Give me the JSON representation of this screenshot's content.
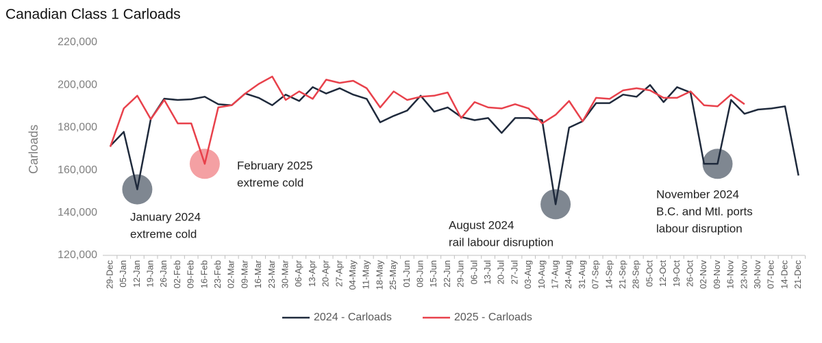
{
  "chart_data": {
    "type": "line",
    "title": "Canadian Class 1 Carloads",
    "y_label": "Carloads",
    "categories": [
      "29-Dec",
      "05-Jan",
      "12-Jan",
      "19-Jan",
      "26-Jan",
      "02-Feb",
      "09-Feb",
      "16-Feb",
      "23-Feb",
      "02-Mar",
      "09-Mar",
      "16-Mar",
      "23-Mar",
      "30-Mar",
      "06-Apr",
      "13-Apr",
      "20-Apr",
      "27-Apr",
      "04-May",
      "11-May",
      "18-May",
      "25-May",
      "01-Jun",
      "08-Jun",
      "15-Jun",
      "22-Jun",
      "29-Jun",
      "06-Jul",
      "13-Jul",
      "20-Jul",
      "27-Jul",
      "03-Aug",
      "10-Aug",
      "17-Aug",
      "24-Aug",
      "31-Aug",
      "07-Sep",
      "14-Sep",
      "21-Sep",
      "28-Sep",
      "05-Oct",
      "12-Oct",
      "19-Oct",
      "26-Oct",
      "02-Nov",
      "09-Nov",
      "16-Nov",
      "23-Nov",
      "30-Nov",
      "07-Dec",
      "14-Dec",
      "21-Dec"
    ],
    "series": [
      {
        "name": "2024 - Carloads",
        "color": "#1f2a3c",
        "values": [
          171400,
          178000,
          151000,
          184000,
          193600,
          193000,
          193300,
          194500,
          191000,
          190500,
          196000,
          194000,
          190500,
          195500,
          192500,
          199000,
          196000,
          198500,
          195500,
          193500,
          182500,
          185500,
          188000,
          195000,
          187500,
          189500,
          185000,
          183500,
          184500,
          177500,
          184500,
          184500,
          183500,
          144000,
          180000,
          183000,
          191500,
          191500,
          195500,
          194500,
          200000,
          192000,
          199000,
          196500,
          163000,
          163000,
          193000,
          186500,
          188500,
          189000,
          190000,
          157500
        ]
      },
      {
        "name": "2025 - Carloads",
        "color": "#e8414b",
        "values": [
          171000,
          189000,
          195000,
          184000,
          193000,
          182000,
          182000,
          163000,
          189500,
          190500,
          196000,
          200500,
          204000,
          193000,
          197000,
          193500,
          202500,
          201000,
          202000,
          198500,
          189500,
          197000,
          193000,
          194500,
          195000,
          196500,
          184500,
          192000,
          189500,
          189000,
          191000,
          189000,
          182000,
          186000,
          192500,
          183000,
          194000,
          193500,
          197500,
          198500,
          197500,
          194000,
          194000,
          197000,
          190500,
          190000,
          195500,
          191000,
          null,
          null,
          null,
          null
        ]
      }
    ],
    "ylim": [
      120000,
      220000
    ],
    "yticks": [
      {
        "value": 120000,
        "label": "120,000"
      },
      {
        "value": 140000,
        "label": "140,000"
      },
      {
        "value": 160000,
        "label": "160,000"
      },
      {
        "value": 180000,
        "label": "180,000"
      },
      {
        "value": 200000,
        "label": "200,000"
      },
      {
        "value": 220000,
        "label": "220,000"
      }
    ],
    "grid": false,
    "legend": "bottom",
    "annotations": [
      {
        "lines": [
          "January 2024",
          "extreme cold"
        ],
        "x": "12-Jan",
        "series": "2024 - Carloads",
        "color": "#7f8791"
      },
      {
        "lines": [
          "February 2025",
          "extreme cold"
        ],
        "x": "16-Feb",
        "series": "2025 - Carloads",
        "color": "#f4a0a3"
      },
      {
        "lines": [
          "August 2024",
          "rail labour disruption"
        ],
        "x": "17-Aug",
        "series": "2024 - Carloads",
        "color": "#7f8791"
      },
      {
        "lines": [
          "November 2024",
          "B.C. and Mtl. ports",
          "labour disruption"
        ],
        "x": "09-Nov",
        "series": "2024 - Carloads",
        "color": "#7f8791"
      }
    ]
  }
}
